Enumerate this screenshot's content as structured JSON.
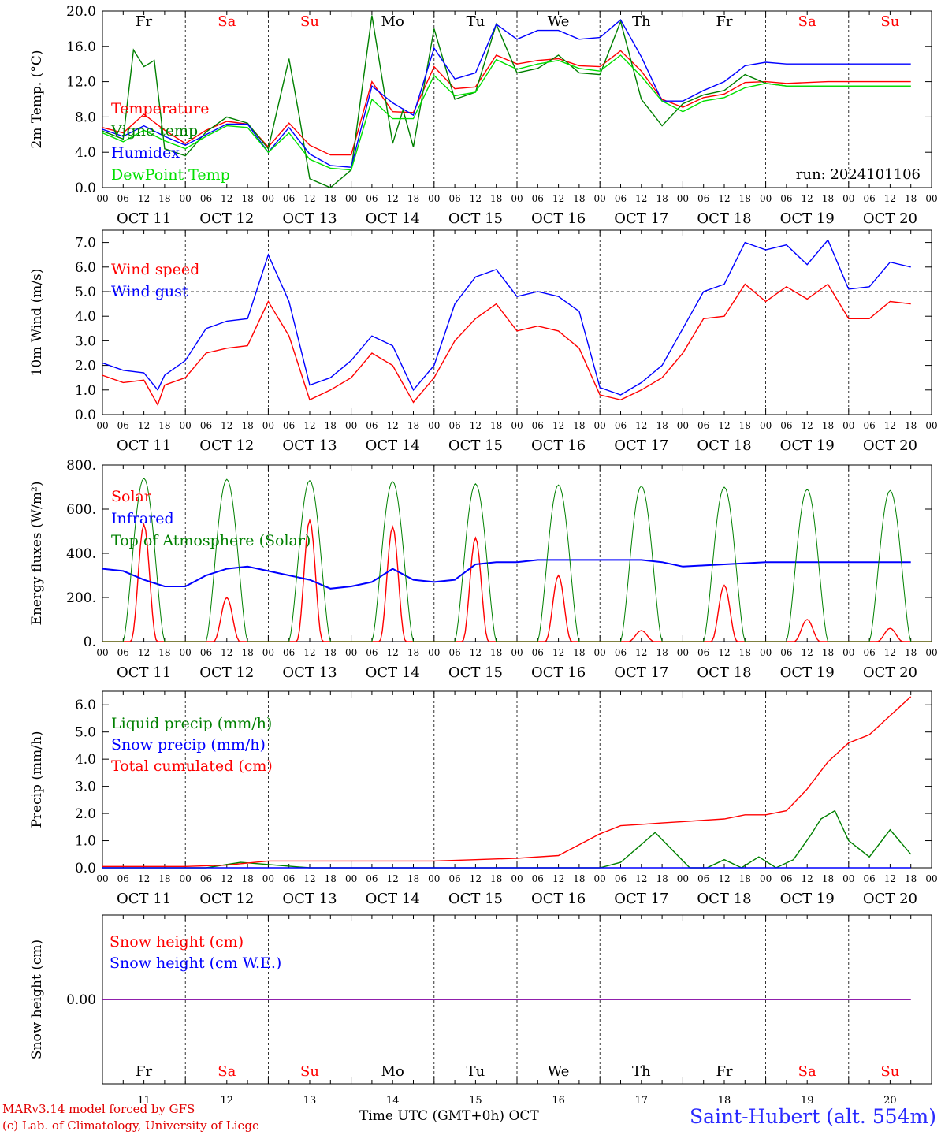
{
  "colors": {
    "red": "#ff0000",
    "blue": "#0000ff",
    "green": "#008000",
    "lightgreen": "#00e000",
    "purple": "#8000a0",
    "grey": "#000000"
  },
  "days": [
    "OCT 11",
    "OCT 12",
    "OCT 13",
    "OCT 14",
    "OCT 15",
    "OCT 16",
    "OCT 17",
    "OCT 18",
    "OCT 19",
    "OCT 20"
  ],
  "weekdays": [
    {
      "label": "Fr",
      "color": "#000000"
    },
    {
      "label": "Sa",
      "color": "#ff0000"
    },
    {
      "label": "Su",
      "color": "#ff0000"
    },
    {
      "label": "Mo",
      "color": "#000000"
    },
    {
      "label": "Tu",
      "color": "#000000"
    },
    {
      "label": "We",
      "color": "#000000"
    },
    {
      "label": "Th",
      "color": "#000000"
    },
    {
      "label": "Fr",
      "color": "#000000"
    },
    {
      "label": "Sa",
      "color": "#ff0000"
    },
    {
      "label": "Su",
      "color": "#ff0000"
    }
  ],
  "hour_ticks": [
    "00",
    "06",
    "12",
    "18"
  ],
  "day_numbers": [
    "11",
    "12",
    "13",
    "14",
    "15",
    "16",
    "17",
    "18",
    "19",
    "20"
  ],
  "run_label": "run: 2024101106",
  "footer": {
    "model": "MARv3.14 model forced by GFS",
    "lab": "(c) Lab. of Climatology, University of Liege",
    "time_axis": "Time UTC (GMT+0h)",
    "month": "OCT",
    "station": "Saint-Hubert (alt. 554m)"
  },
  "chart_data": [
    {
      "type": "line",
      "ylabel": "2m Temp. (°C)",
      "ylim": [
        0,
        20
      ],
      "yticks": [
        "0.0",
        "4.0",
        "8.0",
        "12.0",
        "16.0",
        "20.0"
      ],
      "x_unit": "hours from 2024-10-11 00 UTC",
      "series": [
        {
          "name": "Temperature",
          "color": "#ff0000",
          "x": [
            0,
            6,
            12,
            18,
            24,
            30,
            36,
            42,
            48,
            54,
            60,
            66,
            72,
            78,
            84,
            90,
            96,
            102,
            108,
            114,
            120,
            126,
            132,
            138,
            144,
            150,
            156,
            162,
            168,
            174,
            180,
            186,
            192,
            198,
            204,
            210,
            216,
            222,
            228,
            234
          ],
          "values": [
            6.8,
            6.2,
            8.3,
            6.5,
            5.0,
            6.5,
            7.5,
            7.2,
            4.6,
            7.3,
            4.8,
            3.7,
            3.7,
            12.0,
            8.6,
            8.5,
            13.7,
            11.2,
            11.4,
            15.0,
            14.0,
            14.4,
            14.6,
            13.8,
            13.7,
            15.5,
            13.2,
            10.0,
            9.1,
            10.2,
            10.6,
            11.9,
            12.0,
            11.8,
            11.9,
            12.0,
            12.0,
            12.0,
            12.0,
            12.0
          ]
        },
        {
          "name": "Vigne temp",
          "color": "#008000",
          "x": [
            0,
            6,
            9,
            12,
            15,
            18,
            24,
            30,
            36,
            42,
            48,
            54,
            57,
            60,
            66,
            72,
            78,
            84,
            87,
            90,
            96,
            102,
            108,
            114,
            120,
            126,
            132,
            138,
            144,
            150,
            156,
            162,
            168,
            174,
            180,
            186,
            192,
            198,
            204,
            210,
            216,
            222,
            228,
            234
          ],
          "values": [
            6.4,
            5.5,
            15.6,
            13.7,
            14.4,
            4.4,
            3.6,
            6.3,
            8.0,
            7.3,
            4.4,
            14.6,
            8.0,
            1.0,
            0.0,
            2.0,
            19.5,
            5.0,
            8.8,
            4.6,
            18.0,
            10.0,
            10.8,
            18.5,
            13.0,
            13.5,
            15.0,
            13.0,
            12.8,
            18.8,
            10.0,
            7.0,
            9.5,
            10.5,
            11.0,
            12.8,
            11.8,
            11.5,
            11.5,
            11.5,
            11.5,
            11.5,
            11.5,
            11.5
          ]
        },
        {
          "name": "Humidex",
          "color": "#0000ff",
          "x": [
            0,
            6,
            12,
            18,
            24,
            30,
            36,
            42,
            48,
            54,
            60,
            66,
            72,
            78,
            84,
            90,
            96,
            102,
            108,
            114,
            120,
            126,
            132,
            138,
            144,
            150,
            156,
            162,
            168,
            174,
            180,
            186,
            192,
            198,
            204,
            210,
            216,
            222,
            228,
            234
          ],
          "values": [
            6.6,
            5.8,
            7.0,
            5.8,
            4.8,
            6.0,
            7.2,
            7.2,
            4.0,
            6.8,
            3.8,
            2.5,
            2.3,
            11.5,
            9.6,
            8.2,
            15.8,
            12.3,
            13.0,
            18.5,
            16.8,
            17.8,
            17.8,
            16.8,
            17.0,
            19.0,
            14.8,
            9.8,
            9.8,
            11.0,
            12.0,
            13.8,
            14.2,
            14.0,
            14.0,
            14.0,
            14.0,
            14.0,
            14.0,
            14.0
          ]
        },
        {
          "name": "DewPoint Temp",
          "color": "#00e000",
          "x": [
            0,
            6,
            12,
            18,
            24,
            30,
            36,
            42,
            48,
            54,
            60,
            66,
            72,
            78,
            84,
            90,
            96,
            102,
            108,
            114,
            120,
            126,
            132,
            138,
            144,
            150,
            156,
            162,
            168,
            174,
            180,
            186,
            192,
            198,
            204,
            210,
            216,
            222,
            228,
            234
          ],
          "values": [
            6.2,
            5.2,
            6.5,
            5.3,
            4.4,
            5.8,
            7.0,
            6.8,
            4.0,
            6.2,
            3.2,
            2.2,
            2.0,
            10.0,
            7.8,
            7.8,
            12.7,
            10.4,
            10.8,
            14.5,
            13.4,
            14.0,
            14.4,
            13.5,
            13.2,
            15.0,
            12.6,
            9.8,
            8.6,
            9.8,
            10.2,
            11.3,
            11.8,
            11.5,
            11.5,
            11.5,
            11.5,
            11.5,
            11.5,
            11.5
          ]
        }
      ]
    },
    {
      "type": "line",
      "ylabel": "10m Wind (m/s)",
      "ylim": [
        0,
        7.5
      ],
      "yticks": [
        "0.0",
        "1.0",
        "2.0",
        "3.0",
        "4.0",
        "5.0",
        "6.0",
        "7.0"
      ],
      "x_unit": "hours from 2024-10-11 00 UTC",
      "reference_line": 5.0,
      "series": [
        {
          "name": "Wind speed",
          "color": "#ff0000",
          "x": [
            0,
            6,
            12,
            16,
            18,
            24,
            30,
            36,
            42,
            48,
            54,
            60,
            66,
            72,
            78,
            84,
            90,
            96,
            102,
            108,
            114,
            120,
            126,
            132,
            138,
            144,
            150,
            156,
            162,
            168,
            174,
            180,
            186,
            192,
            198,
            204,
            210,
            216,
            222,
            228,
            234
          ],
          "values": [
            1.6,
            1.3,
            1.4,
            0.4,
            1.2,
            1.5,
            2.5,
            2.7,
            2.8,
            4.6,
            3.2,
            0.6,
            1.0,
            1.5,
            2.5,
            2.0,
            0.5,
            1.5,
            3.0,
            3.9,
            4.5,
            3.4,
            3.6,
            3.4,
            2.7,
            0.8,
            0.6,
            1.0,
            1.5,
            2.5,
            3.9,
            4.0,
            5.3,
            4.6,
            5.2,
            4.7,
            5.3,
            3.9,
            3.9,
            4.6,
            4.5
          ]
        },
        {
          "name": "Wind gust",
          "color": "#0000ff",
          "x": [
            0,
            6,
            12,
            16,
            18,
            24,
            30,
            36,
            42,
            48,
            54,
            60,
            66,
            72,
            78,
            84,
            90,
            96,
            102,
            108,
            114,
            120,
            126,
            132,
            138,
            144,
            150,
            156,
            162,
            168,
            174,
            180,
            186,
            192,
            198,
            204,
            210,
            216,
            222,
            228,
            234
          ],
          "values": [
            2.1,
            1.8,
            1.7,
            1.0,
            1.6,
            2.2,
            3.5,
            3.8,
            3.9,
            6.5,
            4.6,
            1.2,
            1.5,
            2.2,
            3.2,
            2.8,
            1.0,
            2.0,
            4.5,
            5.6,
            5.9,
            4.8,
            5.0,
            4.8,
            4.2,
            1.1,
            0.8,
            1.3,
            2.0,
            3.5,
            5.0,
            5.3,
            7.0,
            6.7,
            6.9,
            6.1,
            7.1,
            5.1,
            5.2,
            6.2,
            6.0
          ]
        }
      ]
    },
    {
      "type": "line",
      "ylabel": "Energy fluxes (W/m²)",
      "ylim": [
        0,
        800
      ],
      "yticks": [
        "0.",
        "200.",
        "400.",
        "600.",
        "800."
      ],
      "x_unit": "hours from 2024-10-11 00 UTC",
      "series": [
        {
          "name": "Solar",
          "color": "#ff0000",
          "day_peaks": [
            530,
            200,
            550,
            520,
            470,
            300,
            50,
            255,
            100,
            60
          ]
        },
        {
          "name": "Infrared",
          "color": "#0000ff",
          "x": [
            0,
            6,
            12,
            18,
            24,
            30,
            36,
            42,
            48,
            54,
            60,
            66,
            72,
            78,
            84,
            90,
            96,
            102,
            108,
            114,
            120,
            126,
            132,
            138,
            144,
            150,
            156,
            162,
            168,
            174,
            180,
            186,
            192,
            198,
            204,
            210,
            216,
            222,
            228,
            234
          ],
          "values": [
            330,
            320,
            280,
            250,
            250,
            300,
            330,
            340,
            320,
            300,
            280,
            240,
            250,
            270,
            330,
            280,
            270,
            280,
            350,
            360,
            360,
            370,
            370,
            370,
            370,
            370,
            370,
            360,
            340,
            345,
            350,
            355,
            360,
            360,
            360,
            360,
            360,
            360,
            360,
            360
          ]
        },
        {
          "name": "Top of Atmosphere (Solar)",
          "color": "#008000",
          "day_peaks": [
            740,
            735,
            730,
            725,
            715,
            710,
            705,
            700,
            690,
            685
          ]
        }
      ]
    },
    {
      "type": "line",
      "ylabel": "Precip (mm/h)",
      "ylim": [
        0,
        6.5
      ],
      "yticks": [
        "0.0",
        "1.0",
        "2.0",
        "3.0",
        "4.0",
        "5.0",
        "6.0"
      ],
      "x_unit": "hours from 2024-10-11 00 UTC",
      "series": [
        {
          "name": "Liquid precip (mm/h)",
          "color": "#008000",
          "x": [
            0,
            30,
            40,
            50,
            60,
            70,
            100,
            120,
            135,
            144,
            150,
            160,
            170,
            175,
            180,
            185,
            190,
            195,
            200,
            205,
            208,
            212,
            216,
            222,
            228,
            234
          ],
          "values": [
            0,
            0,
            0.2,
            0.1,
            0,
            0,
            0,
            0,
            0,
            0,
            0.2,
            1.3,
            0,
            0,
            0.3,
            0,
            0.4,
            0,
            0.3,
            1.2,
            1.8,
            2.1,
            1.0,
            0.4,
            1.4,
            0.5
          ]
        },
        {
          "name": "Snow precip (mm/h)",
          "color": "#0000ff",
          "x": [
            0,
            234
          ],
          "values": [
            0,
            0
          ]
        },
        {
          "name": "Total cumulated (cm)",
          "color": "#ff0000",
          "x": [
            0,
            24,
            36,
            48,
            60,
            72,
            84,
            96,
            108,
            120,
            132,
            144,
            150,
            156,
            162,
            168,
            174,
            180,
            186,
            192,
            198,
            204,
            210,
            216,
            222,
            228,
            234
          ],
          "values": [
            0.05,
            0.05,
            0.1,
            0.25,
            0.25,
            0.25,
            0.25,
            0.25,
            0.3,
            0.35,
            0.45,
            1.25,
            1.55,
            1.6,
            1.65,
            1.7,
            1.75,
            1.8,
            1.95,
            1.95,
            2.1,
            2.9,
            3.9,
            4.6,
            4.9,
            5.6,
            6.3
          ]
        }
      ]
    },
    {
      "type": "line",
      "ylabel": "Snow height (cm)",
      "yticks": [
        "0.00"
      ],
      "x_unit": "hours from 2024-10-11 00 UTC",
      "series": [
        {
          "name": "Snow height (cm)",
          "color": "#ff0000",
          "x": [
            0,
            234
          ],
          "values": [
            0,
            0
          ]
        },
        {
          "name": "Snow height (cm W.E.)",
          "color": "#0000ff",
          "x": [
            0,
            234
          ],
          "values": [
            0,
            0
          ]
        }
      ]
    }
  ]
}
